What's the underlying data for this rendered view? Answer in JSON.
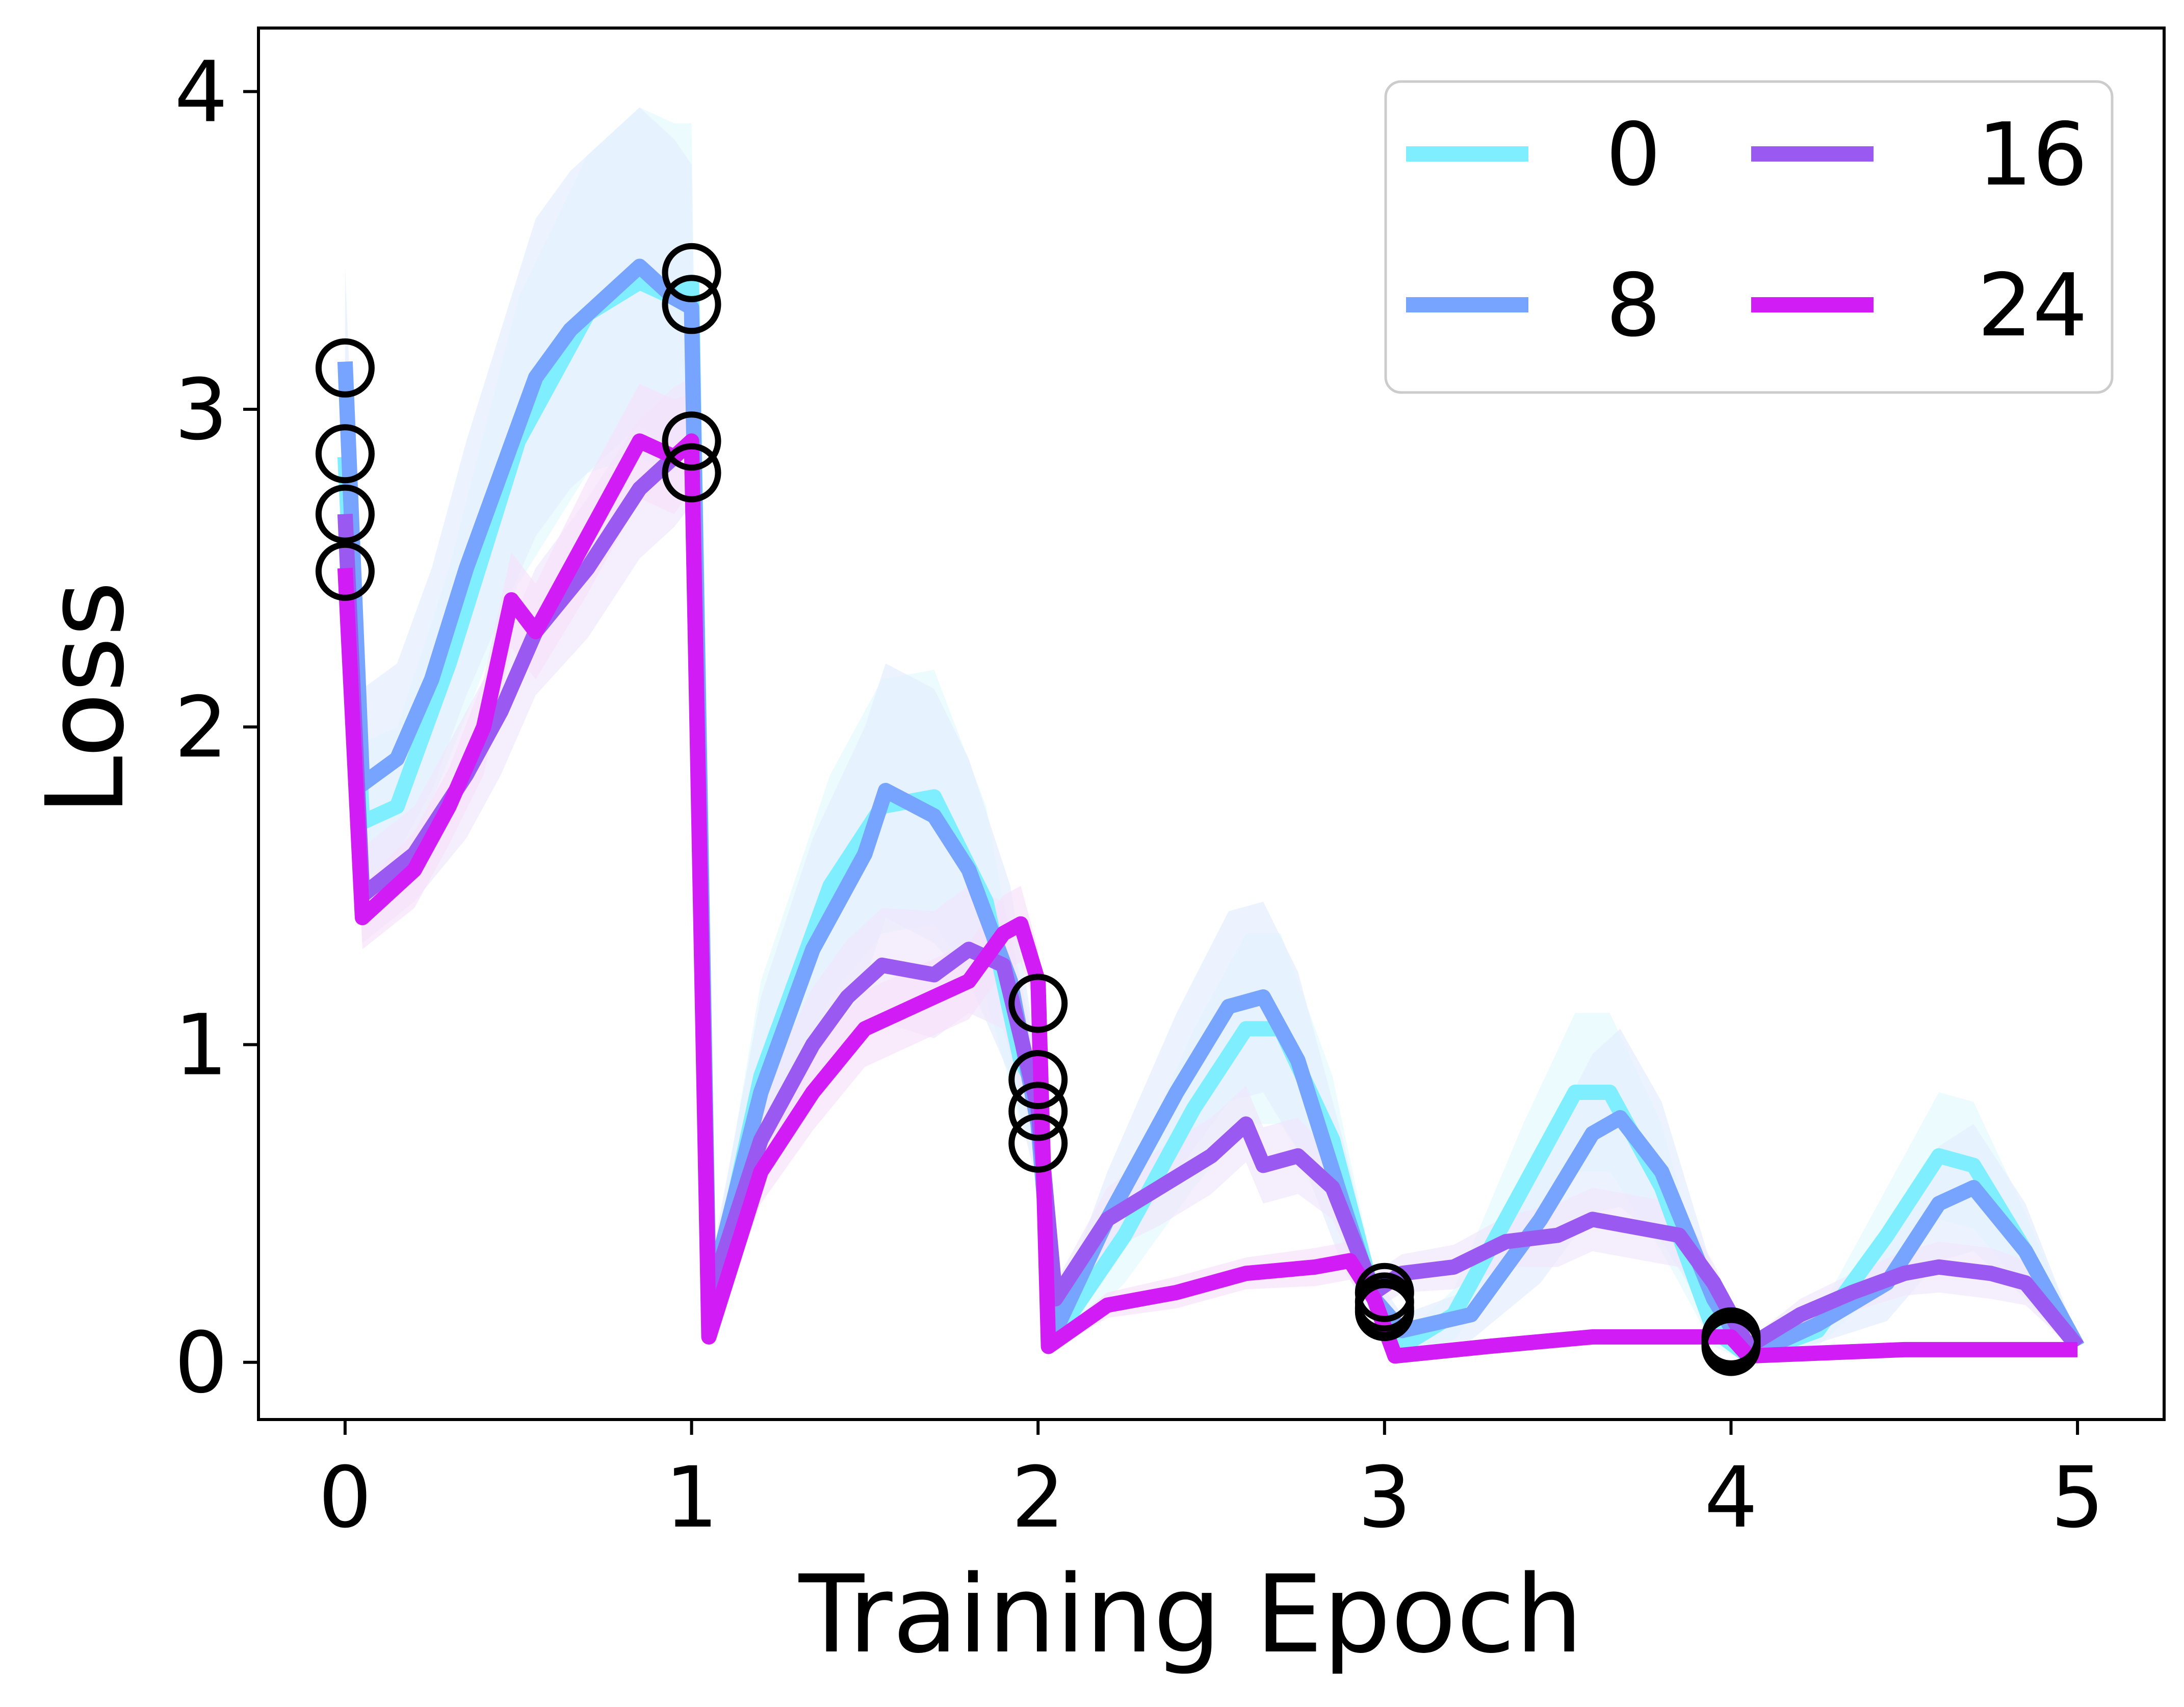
{
  "chart_data": {
    "type": "line",
    "xlabel": "Training Epoch",
    "ylabel": "Loss",
    "xlim": [
      -0.25,
      5.25
    ],
    "ylim": [
      -0.18,
      4.2
    ],
    "x_ticks": [
      0,
      1,
      2,
      3,
      4,
      5
    ],
    "y_ticks": [
      0,
      1,
      2,
      3,
      4
    ],
    "grid": false,
    "legend": {
      "placement": "top-right",
      "columns": 2
    },
    "marker_style": "open black circles at start of each epoch",
    "series": [
      {
        "name": "0",
        "color": "#7fefff",
        "band_color": "#e2f9fd",
        "x": [
          0,
          0.05,
          0.15,
          0.3,
          0.5,
          0.7,
          0.85,
          0.95,
          1.0,
          1.05,
          1.2,
          1.4,
          1.55,
          1.7,
          1.85,
          1.95,
          2.0,
          2.05,
          2.25,
          2.45,
          2.6,
          2.7,
          2.85,
          2.97,
          3.05,
          3.2,
          3.4,
          3.55,
          3.65,
          3.8,
          3.95,
          4.05,
          4.25,
          4.45,
          4.6,
          4.7,
          4.85,
          5.0
        ],
        "y": [
          2.85,
          1.7,
          1.75,
          2.2,
          2.9,
          3.3,
          3.4,
          3.35,
          3.4,
          0.15,
          0.9,
          1.5,
          1.75,
          1.78,
          1.45,
          0.95,
          0.85,
          0.08,
          0.4,
          0.8,
          1.05,
          1.05,
          0.7,
          0.2,
          0.05,
          0.15,
          0.55,
          0.85,
          0.85,
          0.55,
          0.1,
          0.02,
          0.1,
          0.4,
          0.65,
          0.62,
          0.35,
          0.05
        ],
        "band": [
          0.25,
          0.25,
          0.25,
          0.3,
          0.45,
          0.5,
          0.55,
          0.55,
          0.5,
          0.08,
          0.3,
          0.35,
          0.4,
          0.4,
          0.3,
          0.2,
          0.15,
          0.05,
          0.15,
          0.25,
          0.3,
          0.3,
          0.2,
          0.08,
          0.03,
          0.08,
          0.2,
          0.25,
          0.25,
          0.2,
          0.05,
          0.02,
          0.05,
          0.15,
          0.2,
          0.2,
          0.12,
          0.03
        ]
      },
      {
        "name": "8",
        "color": "#77a4ff",
        "band_color": "#e3ecfd",
        "x": [
          0,
          0.05,
          0.15,
          0.25,
          0.35,
          0.45,
          0.55,
          0.65,
          0.75,
          0.85,
          0.95,
          1.0,
          1.05,
          1.2,
          1.35,
          1.5,
          1.56,
          1.7,
          1.8,
          1.92,
          2.0,
          2.05,
          2.2,
          2.4,
          2.55,
          2.65,
          2.75,
          2.88,
          2.97,
          3.05,
          3.25,
          3.45,
          3.6,
          3.68,
          3.8,
          3.95,
          4.05,
          4.25,
          4.45,
          4.6,
          4.7,
          4.85,
          5.0
        ],
        "y": [
          3.15,
          1.82,
          1.9,
          2.15,
          2.5,
          2.8,
          3.1,
          3.25,
          3.35,
          3.45,
          3.35,
          3.32,
          0.2,
          0.85,
          1.3,
          1.6,
          1.8,
          1.72,
          1.55,
          1.2,
          0.75,
          0.1,
          0.45,
          0.85,
          1.12,
          1.15,
          0.95,
          0.5,
          0.2,
          0.1,
          0.15,
          0.45,
          0.72,
          0.77,
          0.6,
          0.2,
          0.02,
          0.12,
          0.25,
          0.5,
          0.55,
          0.35,
          0.05
        ],
        "band": [
          0.3,
          0.3,
          0.3,
          0.35,
          0.4,
          0.45,
          0.5,
          0.5,
          0.5,
          0.5,
          0.5,
          0.45,
          0.08,
          0.3,
          0.35,
          0.4,
          0.4,
          0.4,
          0.35,
          0.3,
          0.2,
          0.05,
          0.15,
          0.25,
          0.3,
          0.3,
          0.28,
          0.2,
          0.08,
          0.05,
          0.08,
          0.2,
          0.25,
          0.28,
          0.22,
          0.08,
          0.02,
          0.06,
          0.12,
          0.18,
          0.2,
          0.15,
          0.03
        ]
      },
      {
        "name": "16",
        "color": "#9a5af2",
        "band_color": "#efe5fb",
        "x": [
          0,
          0.05,
          0.2,
          0.35,
          0.45,
          0.55,
          0.7,
          0.85,
          0.95,
          1.0,
          1.05,
          1.2,
          1.35,
          1.45,
          1.55,
          1.7,
          1.8,
          1.9,
          2.0,
          2.05,
          2.2,
          2.35,
          2.5,
          2.6,
          2.65,
          2.75,
          2.85,
          2.97,
          3.05,
          3.2,
          3.35,
          3.5,
          3.6,
          3.75,
          3.85,
          3.95,
          4.05,
          4.2,
          4.35,
          4.5,
          4.6,
          4.75,
          4.85,
          5.0
        ],
        "y": [
          2.67,
          1.47,
          1.6,
          1.85,
          2.05,
          2.3,
          2.5,
          2.75,
          2.85,
          2.9,
          0.2,
          0.7,
          1.0,
          1.15,
          1.25,
          1.22,
          1.3,
          1.25,
          0.8,
          0.2,
          0.45,
          0.55,
          0.65,
          0.75,
          0.62,
          0.65,
          0.55,
          0.22,
          0.28,
          0.3,
          0.38,
          0.4,
          0.45,
          0.42,
          0.4,
          0.25,
          0.05,
          0.15,
          0.22,
          0.28,
          0.3,
          0.28,
          0.25,
          0.05
        ],
        "band": [
          0.15,
          0.15,
          0.15,
          0.2,
          0.2,
          0.2,
          0.22,
          0.22,
          0.22,
          0.2,
          0.05,
          0.15,
          0.18,
          0.18,
          0.18,
          0.2,
          0.2,
          0.2,
          0.15,
          0.05,
          0.1,
          0.12,
          0.12,
          0.12,
          0.12,
          0.12,
          0.1,
          0.06,
          0.06,
          0.07,
          0.08,
          0.1,
          0.1,
          0.1,
          0.1,
          0.06,
          0.02,
          0.05,
          0.06,
          0.07,
          0.08,
          0.08,
          0.07,
          0.02
        ]
      },
      {
        "name": "24",
        "color": "#d21cf6",
        "band_color": "#f6e0fb",
        "x": [
          0,
          0.05,
          0.2,
          0.3,
          0.4,
          0.48,
          0.55,
          0.7,
          0.85,
          0.95,
          1.0,
          1.05,
          1.2,
          1.35,
          1.5,
          1.6,
          1.7,
          1.8,
          1.9,
          1.95,
          2.0,
          2.03,
          2.2,
          2.4,
          2.6,
          2.8,
          2.9,
          2.97,
          3.03,
          3.3,
          3.6,
          4.0,
          4.05,
          4.5,
          5.0
        ],
        "y": [
          2.5,
          1.4,
          1.55,
          1.75,
          2.0,
          2.4,
          2.3,
          2.6,
          2.9,
          2.85,
          2.9,
          0.08,
          0.6,
          0.85,
          1.05,
          1.1,
          1.15,
          1.2,
          1.35,
          1.38,
          1.2,
          0.05,
          0.18,
          0.22,
          0.28,
          0.3,
          0.32,
          0.2,
          0.02,
          0.05,
          0.08,
          0.08,
          0.02,
          0.04,
          0.04
        ],
        "band": [
          0.1,
          0.1,
          0.12,
          0.12,
          0.15,
          0.15,
          0.15,
          0.18,
          0.18,
          0.18,
          0.15,
          0.03,
          0.1,
          0.12,
          0.12,
          0.12,
          0.12,
          0.12,
          0.12,
          0.12,
          0.1,
          0.02,
          0.04,
          0.05,
          0.05,
          0.06,
          0.06,
          0.04,
          0.01,
          0.02,
          0.02,
          0.02,
          0.01,
          0.01,
          0.01
        ]
      }
    ],
    "markers": [
      {
        "x": 0,
        "y": 3.13
      },
      {
        "x": 0,
        "y": 2.86
      },
      {
        "x": 0,
        "y": 2.67
      },
      {
        "x": 0,
        "y": 2.49
      },
      {
        "x": 1,
        "y": 3.43
      },
      {
        "x": 1,
        "y": 3.33
      },
      {
        "x": 1,
        "y": 2.9
      },
      {
        "x": 1,
        "y": 2.8
      },
      {
        "x": 2,
        "y": 1.13
      },
      {
        "x": 2,
        "y": 0.89
      },
      {
        "x": 2,
        "y": 0.79
      },
      {
        "x": 2,
        "y": 0.69
      },
      {
        "x": 3,
        "y": 0.22
      },
      {
        "x": 3,
        "y": 0.19
      },
      {
        "x": 3,
        "y": 0.17
      },
      {
        "x": 3,
        "y": 0.16
      },
      {
        "x": 4,
        "y": 0.08
      },
      {
        "x": 4,
        "y": 0.07
      },
      {
        "x": 4,
        "y": 0.06
      },
      {
        "x": 4,
        "y": 0.05
      }
    ]
  }
}
